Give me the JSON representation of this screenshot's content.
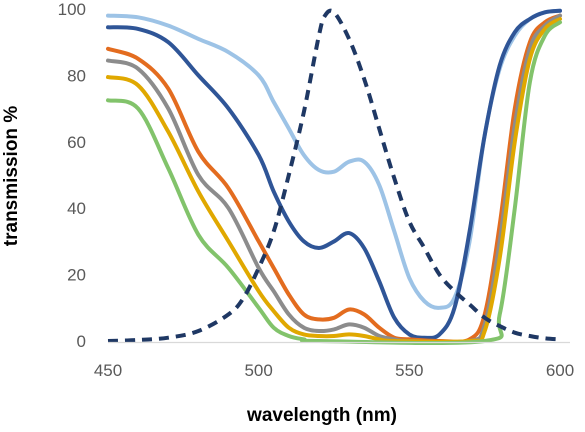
{
  "chart_data": {
    "type": "line",
    "title": "",
    "xlabel": "wavelength (nm)",
    "ylabel": "transmission %",
    "xlim": [
      450,
      600
    ],
    "ylim": [
      0,
      100
    ],
    "x_ticks": [
      450,
      500,
      550,
      600
    ],
    "y_ticks": [
      0,
      20,
      40,
      60,
      80,
      100
    ],
    "x_tick_labels": [
      "450",
      "500",
      "550",
      "600"
    ],
    "y_tick_labels": [
      "0",
      "20",
      "40",
      "60",
      "80",
      "100"
    ],
    "grid": false,
    "legend": "none",
    "series": [
      {
        "color": "#9dc3e6",
        "dash": false,
        "points": [
          [
            450,
            98
          ],
          [
            460,
            97.5
          ],
          [
            470,
            95
          ],
          [
            480,
            91
          ],
          [
            490,
            87
          ],
          [
            500,
            80
          ],
          [
            505,
            72
          ],
          [
            510,
            64
          ],
          [
            515,
            56
          ],
          [
            520,
            51.5
          ],
          [
            525,
            51
          ],
          [
            530,
            54
          ],
          [
            535,
            54
          ],
          [
            540,
            47
          ],
          [
            545,
            33
          ],
          [
            550,
            19
          ],
          [
            555,
            12
          ],
          [
            560,
            10
          ],
          [
            565,
            13
          ],
          [
            570,
            30
          ],
          [
            575,
            62
          ],
          [
            580,
            82
          ],
          [
            585,
            92
          ],
          [
            590,
            97
          ],
          [
            595,
            99
          ],
          [
            600,
            99.5
          ]
        ]
      },
      {
        "color": "#2f5597",
        "dash": false,
        "points": [
          [
            450,
            94.5
          ],
          [
            460,
            94
          ],
          [
            470,
            90
          ],
          [
            480,
            80
          ],
          [
            490,
            70
          ],
          [
            500,
            56
          ],
          [
            505,
            45
          ],
          [
            510,
            36
          ],
          [
            515,
            30
          ],
          [
            520,
            28
          ],
          [
            525,
            30
          ],
          [
            530,
            32.5
          ],
          [
            535,
            28
          ],
          [
            540,
            18
          ],
          [
            545,
            7
          ],
          [
            550,
            2
          ],
          [
            555,
            1
          ],
          [
            560,
            2
          ],
          [
            565,
            10
          ],
          [
            570,
            33
          ],
          [
            575,
            62
          ],
          [
            580,
            83
          ],
          [
            585,
            93
          ],
          [
            590,
            97
          ],
          [
            595,
            99
          ],
          [
            600,
            99.5
          ]
        ]
      },
      {
        "color": "#e36c1f",
        "dash": false,
        "points": [
          [
            450,
            88
          ],
          [
            460,
            85
          ],
          [
            470,
            76
          ],
          [
            480,
            57
          ],
          [
            490,
            46
          ],
          [
            500,
            30
          ],
          [
            505,
            22
          ],
          [
            510,
            14
          ],
          [
            515,
            8
          ],
          [
            520,
            6.5
          ],
          [
            525,
            7
          ],
          [
            530,
            9.5
          ],
          [
            535,
            8
          ],
          [
            540,
            4
          ],
          [
            545,
            1
          ],
          [
            550,
            0.5
          ],
          [
            560,
            0
          ],
          [
            570,
            0.5
          ],
          [
            575,
            8
          ],
          [
            580,
            35
          ],
          [
            585,
            70
          ],
          [
            590,
            90
          ],
          [
            595,
            96
          ],
          [
            600,
            98
          ]
        ]
      },
      {
        "color": "#8c8c8c",
        "dash": false,
        "points": [
          [
            450,
            84.5
          ],
          [
            460,
            82
          ],
          [
            470,
            70
          ],
          [
            480,
            50
          ],
          [
            490,
            40
          ],
          [
            500,
            22
          ],
          [
            505,
            15
          ],
          [
            510,
            8
          ],
          [
            515,
            4
          ],
          [
            520,
            3
          ],
          [
            525,
            3.5
          ],
          [
            530,
            5
          ],
          [
            535,
            4
          ],
          [
            540,
            1.5
          ],
          [
            545,
            0.5
          ],
          [
            550,
            0
          ],
          [
            570,
            0
          ],
          [
            575,
            5
          ],
          [
            580,
            30
          ],
          [
            585,
            65
          ],
          [
            590,
            88
          ],
          [
            595,
            95
          ],
          [
            600,
            98
          ]
        ]
      },
      {
        "color": "#e0a800",
        "dash": false,
        "points": [
          [
            450,
            79.5
          ],
          [
            460,
            77
          ],
          [
            470,
            63
          ],
          [
            480,
            45
          ],
          [
            490,
            30
          ],
          [
            500,
            15
          ],
          [
            505,
            9
          ],
          [
            510,
            4
          ],
          [
            515,
            2
          ],
          [
            520,
            1.5
          ],
          [
            525,
            1.5
          ],
          [
            530,
            2
          ],
          [
            535,
            1.5
          ],
          [
            540,
            0.5
          ],
          [
            545,
            0
          ],
          [
            570,
            0
          ],
          [
            575,
            3
          ],
          [
            580,
            25
          ],
          [
            585,
            60
          ],
          [
            590,
            85
          ],
          [
            595,
            94
          ],
          [
            600,
            97
          ]
        ]
      },
      {
        "color": "#82c36b",
        "dash": false,
        "points": [
          [
            450,
            72.5
          ],
          [
            460,
            70
          ],
          [
            470,
            52
          ],
          [
            480,
            32
          ],
          [
            490,
            22
          ],
          [
            500,
            10
          ],
          [
            505,
            4
          ],
          [
            510,
            1.5
          ],
          [
            515,
            0.5
          ],
          [
            520,
            0
          ],
          [
            575,
            0
          ],
          [
            580,
            8
          ],
          [
            585,
            40
          ],
          [
            590,
            78
          ],
          [
            595,
            92
          ],
          [
            600,
            96
          ]
        ]
      },
      {
        "color": "#1f3864",
        "dash": true,
        "points": [
          [
            450,
            0
          ],
          [
            460,
            0.3
          ],
          [
            470,
            1
          ],
          [
            480,
            3
          ],
          [
            490,
            8
          ],
          [
            495,
            13
          ],
          [
            500,
            22
          ],
          [
            505,
            33
          ],
          [
            510,
            50
          ],
          [
            515,
            69
          ],
          [
            520,
            92
          ],
          [
            522,
            98
          ],
          [
            525,
            99
          ],
          [
            530,
            91
          ],
          [
            535,
            79
          ],
          [
            540,
            64
          ],
          [
            545,
            49
          ],
          [
            550,
            36
          ],
          [
            555,
            28
          ],
          [
            560,
            20
          ],
          [
            565,
            15
          ],
          [
            570,
            11
          ],
          [
            575,
            7
          ],
          [
            580,
            4.5
          ],
          [
            585,
            2.5
          ],
          [
            590,
            1.5
          ],
          [
            595,
            0.8
          ],
          [
            600,
            0.5
          ]
        ]
      }
    ]
  }
}
